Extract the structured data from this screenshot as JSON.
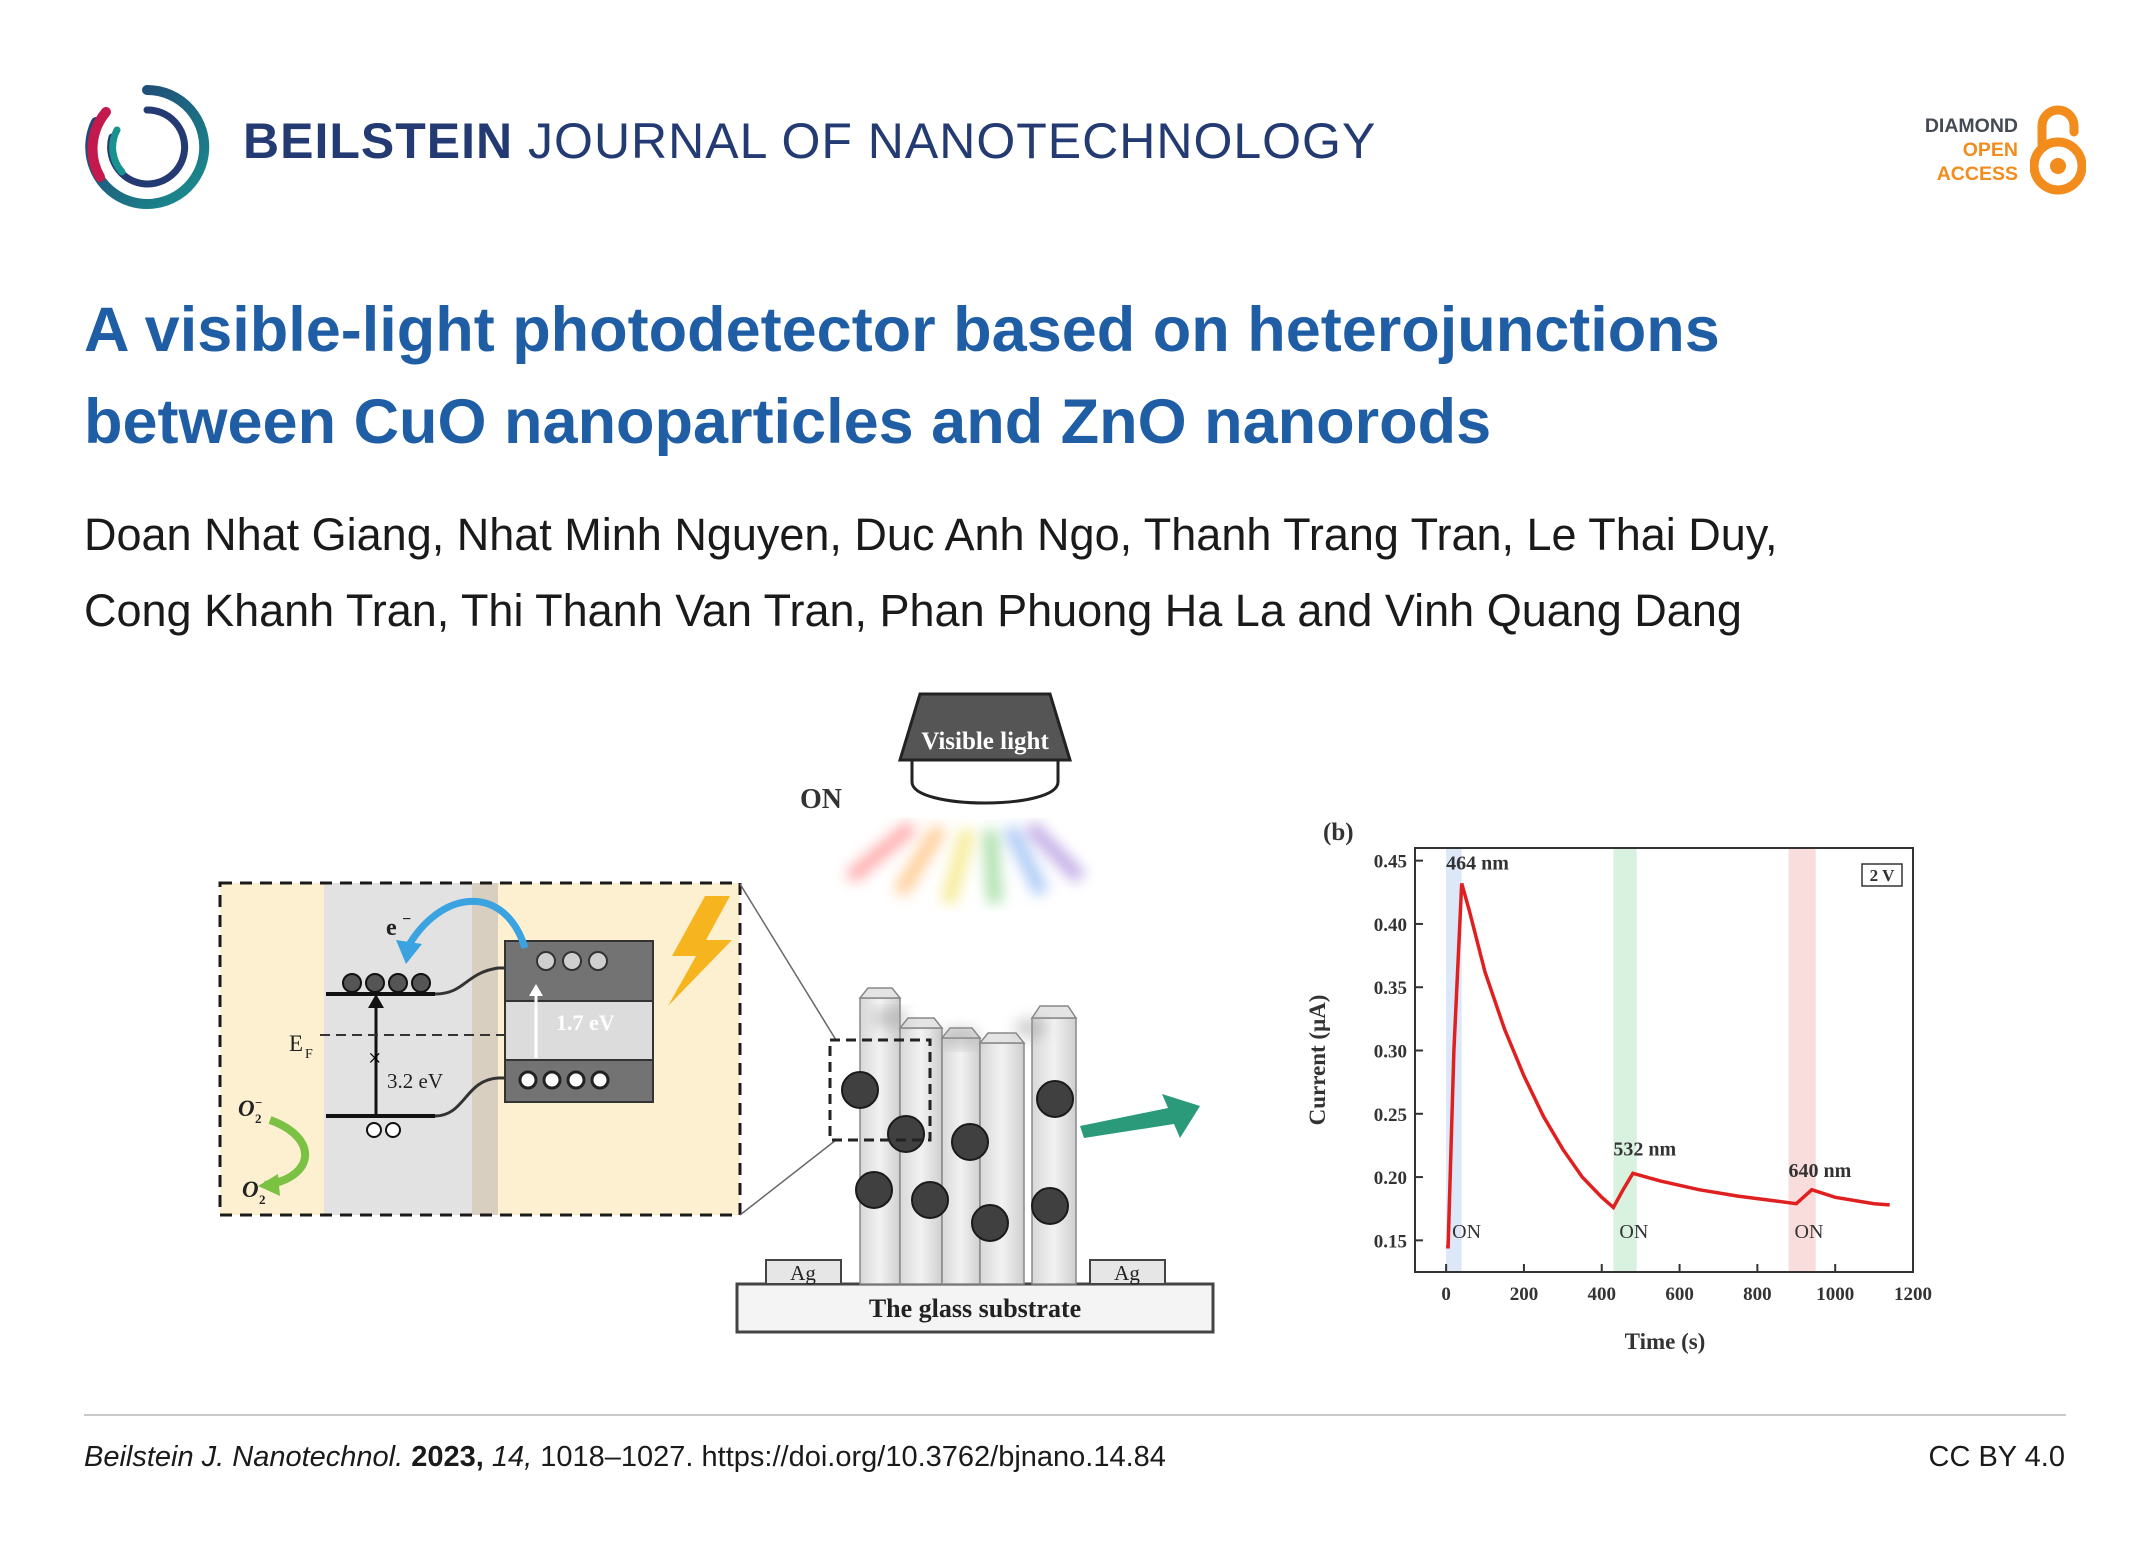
{
  "header": {
    "journal_bold": "BEILSTEIN",
    "journal_rest": "JOURNAL OF NANOTECHNOLOGY",
    "badge": {
      "line1": "DIAMOND",
      "line2": "OPEN",
      "line3": "ACCESS"
    },
    "colors": {
      "journal": "#233a72",
      "badge_orange": "#f28c1c"
    }
  },
  "article": {
    "title_line1": "A visible-light photodetector based on heterojunctions",
    "title_line2": "between CuO nanoparticles and ZnO nanorods",
    "authors_line1": "Doan Nhat Giang, Nhat Minh Nguyen, Duc Anh Ngo, Thanh Trang Tran, Le Thai Duy,",
    "authors_line2": "Cong Khanh Tran, Thi Thanh Van Tran, Phan Phuong Ha La and Vinh Quang Dang",
    "title_color": "#1f5da4"
  },
  "figure": {
    "band": {
      "electron": "e",
      "fermi": "E",
      "fermi_sub": "F",
      "gap_cuo": "1.7 eV",
      "gap_zno": "3.2 eV",
      "o2_minus": "O",
      "o2": "O"
    },
    "device": {
      "light_label": "Visible light",
      "on_label": "ON",
      "electrode_left": "Ag",
      "electrode_right": "Ag",
      "substrate": "The glass substrate"
    },
    "chart_data": {
      "type": "line",
      "panel": "(b)",
      "xlabel": "Time (s)",
      "ylabel": "Current (μA)",
      "xlim": [
        -80,
        1200
      ],
      "ylim": [
        0.125,
        0.46
      ],
      "x_ticks": [
        "0",
        "200",
        "400",
        "600",
        "800",
        "1000",
        "1200"
      ],
      "y_ticks": [
        "0.15",
        "0.20",
        "0.25",
        "0.30",
        "0.35",
        "0.40",
        "0.45"
      ],
      "bias_label": "2 V",
      "series": [
        {
          "color": "#e02020",
          "x": [
            0,
            5,
            20,
            40,
            60,
            100,
            150,
            200,
            250,
            300,
            350,
            400,
            430,
            455,
            480,
            550,
            650,
            750,
            850,
            900,
            940,
            1000,
            1100,
            1140
          ],
          "y": [
            0.145,
            0.145,
            0.3,
            0.432,
            0.41,
            0.362,
            0.317,
            0.28,
            0.248,
            0.222,
            0.2,
            0.184,
            0.176,
            0.19,
            0.203,
            0.197,
            0.19,
            0.185,
            0.181,
            0.179,
            0.19,
            0.184,
            0.179,
            0.178
          ]
        }
      ],
      "illumination_bands": [
        {
          "wavelength": "464 nm",
          "x_start": 0,
          "x_end": 40,
          "color": "#3f7fd6",
          "on": "ON"
        },
        {
          "wavelength": "532 nm",
          "x_start": 430,
          "x_end": 490,
          "color": "#2fb050",
          "on": "ON"
        },
        {
          "wavelength": "640 nm",
          "x_start": 880,
          "x_end": 950,
          "color": "#e04040",
          "on": "ON"
        }
      ]
    }
  },
  "footer": {
    "journal_abbrev": "Beilstein J. Nanotechnol.",
    "year": "2023,",
    "volume": "14,",
    "pages_doi": "1018–1027. https://doi.org/10.3762/bjnano.14.84",
    "license": "CC BY 4.0"
  }
}
